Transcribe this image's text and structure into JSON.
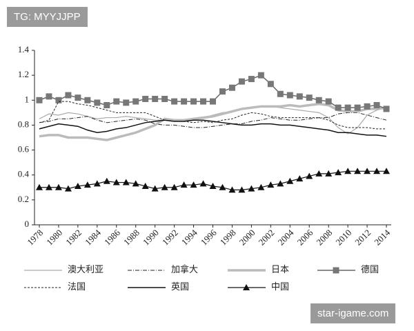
{
  "chart_data": {
    "type": "line",
    "x": [
      1978,
      1979,
      1980,
      1981,
      1982,
      1983,
      1984,
      1985,
      1986,
      1987,
      1988,
      1989,
      1990,
      1991,
      1992,
      1993,
      1994,
      1995,
      1996,
      1997,
      1998,
      1999,
      2000,
      2001,
      2002,
      2003,
      2004,
      2005,
      2006,
      2007,
      2008,
      2009,
      2010,
      2011,
      2012,
      2013,
      2014
    ],
    "xlim": [
      1977.5,
      2014.5
    ],
    "xticks": [
      1978,
      1980,
      1982,
      1984,
      1986,
      1988,
      1990,
      1992,
      1994,
      1996,
      1998,
      2000,
      2002,
      2004,
      2006,
      2008,
      2010,
      2012,
      2014
    ],
    "ylim": [
      0,
      1.4
    ],
    "yticks": [
      0,
      0.2,
      0.4,
      0.6,
      0.8,
      1,
      1.2,
      1.4
    ],
    "series": [
      {
        "name": "澳大利亚",
        "color": "#aaaaaa",
        "width": 1.2,
        "dash": "",
        "marker": "",
        "values": [
          0.85,
          0.89,
          0.88,
          0.9,
          0.89,
          0.87,
          0.85,
          0.86,
          0.86,
          0.87,
          0.86,
          0.85,
          0.84,
          0.84,
          0.83,
          0.84,
          0.85,
          0.86,
          0.88,
          0.9,
          0.91,
          0.93,
          0.94,
          0.95,
          0.95,
          0.94,
          0.93,
          0.92,
          0.91,
          0.9,
          0.86,
          0.78,
          0.73,
          0.78,
          0.88,
          0.92,
          0.94
        ]
      },
      {
        "name": "加拿大",
        "color": "#222222",
        "width": 1,
        "dash": "6,2,1,2",
        "marker": "",
        "values": [
          0.82,
          0.83,
          0.85,
          0.85,
          0.86,
          0.87,
          0.84,
          0.82,
          0.83,
          0.84,
          0.85,
          0.84,
          0.81,
          0.8,
          0.8,
          0.79,
          0.78,
          0.78,
          0.79,
          0.8,
          0.81,
          0.81,
          0.83,
          0.84,
          0.86,
          0.85,
          0.84,
          0.84,
          0.85,
          0.86,
          0.86,
          0.89,
          0.9,
          0.9,
          0.88,
          0.86,
          0.84
        ]
      },
      {
        "name": "日本",
        "color": "#bbbbbb",
        "width": 3.5,
        "dash": "",
        "marker": "",
        "values": [
          0.71,
          0.72,
          0.72,
          0.7,
          0.7,
          0.7,
          0.69,
          0.68,
          0.7,
          0.72,
          0.74,
          0.77,
          0.8,
          0.85,
          0.84,
          0.84,
          0.85,
          0.86,
          0.87,
          0.89,
          0.91,
          0.93,
          0.94,
          0.95,
          0.95,
          0.95,
          0.96,
          0.95,
          0.96,
          0.97,
          0.96,
          0.92,
          0.91,
          0.91,
          0.93,
          0.93,
          0.94
        ]
      },
      {
        "name": "德国",
        "color": "#666666",
        "width": 1.5,
        "dash": "",
        "marker": "square",
        "values": [
          1.0,
          1.03,
          1.0,
          1.04,
          1.02,
          1.0,
          0.98,
          0.96,
          0.99,
          0.98,
          0.99,
          1.01,
          1.01,
          1.01,
          0.99,
          0.99,
          0.99,
          0.99,
          0.99,
          1.07,
          1.1,
          1.15,
          1.17,
          1.2,
          1.13,
          1.05,
          1.04,
          1.03,
          1.02,
          1.0,
          0.99,
          0.94,
          0.94,
          0.94,
          0.95,
          0.96,
          0.93
        ]
      },
      {
        "name": "法国",
        "color": "#222222",
        "width": 1,
        "dash": "3,2",
        "marker": "",
        "values": [
          0.82,
          0.84,
          0.99,
          0.99,
          0.97,
          0.96,
          0.94,
          0.92,
          0.9,
          0.9,
          0.9,
          0.9,
          0.87,
          0.84,
          0.83,
          0.83,
          0.82,
          0.83,
          0.82,
          0.84,
          0.85,
          0.88,
          0.9,
          0.89,
          0.87,
          0.86,
          0.86,
          0.86,
          0.86,
          0.86,
          0.84,
          0.8,
          0.78,
          0.78,
          0.78,
          0.77,
          0.77
        ]
      },
      {
        "name": "英国",
        "color": "#111111",
        "width": 1.5,
        "dash": "",
        "marker": "",
        "values": [
          0.77,
          0.79,
          0.81,
          0.8,
          0.79,
          0.76,
          0.74,
          0.75,
          0.77,
          0.78,
          0.8,
          0.82,
          0.83,
          0.84,
          0.83,
          0.83,
          0.84,
          0.84,
          0.83,
          0.82,
          0.81,
          0.8,
          0.8,
          0.81,
          0.81,
          0.8,
          0.8,
          0.79,
          0.78,
          0.77,
          0.76,
          0.74,
          0.74,
          0.73,
          0.72,
          0.72,
          0.71
        ]
      },
      {
        "name": "中国",
        "color": "#111111",
        "width": 1.2,
        "dash": "",
        "marker": "triangle",
        "values": [
          0.3,
          0.3,
          0.3,
          0.29,
          0.31,
          0.32,
          0.33,
          0.35,
          0.34,
          0.34,
          0.33,
          0.31,
          0.29,
          0.3,
          0.3,
          0.32,
          0.32,
          0.33,
          0.31,
          0.3,
          0.28,
          0.28,
          0.29,
          0.3,
          0.32,
          0.33,
          0.35,
          0.37,
          0.39,
          0.41,
          0.41,
          0.42,
          0.43,
          0.43,
          0.43,
          0.43,
          0.43
        ]
      }
    ]
  },
  "watermarks": [
    "TG: MYYJJPP",
    "star-igame.com"
  ]
}
